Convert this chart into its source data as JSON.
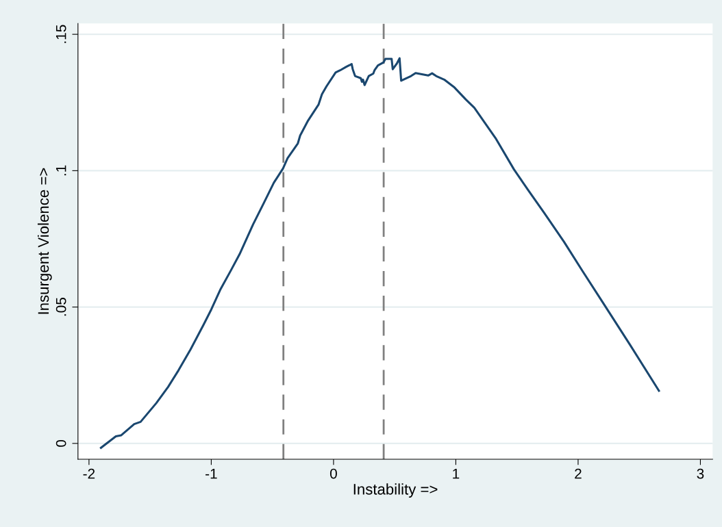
{
  "chart_data": {
    "type": "line",
    "xlabel": "Instability =>",
    "ylabel": "Insurgent Violence =>",
    "xlim": [
      -2.09,
      3.1
    ],
    "ylim": [
      -0.0058,
      0.154
    ],
    "xticks": [
      -2,
      -1,
      0,
      1,
      2,
      3
    ],
    "yticks": [
      0,
      {
        "value": 0.05,
        "label": ".05"
      },
      {
        "value": 0.1,
        "label": ".1"
      },
      {
        "value": 0.15,
        "label": ".15"
      }
    ],
    "grid": "y",
    "marker": "none",
    "line_style": "solid",
    "series": [
      {
        "color": "#1a476f",
        "x": [
          -1.902,
          -1.78,
          -1.736,
          -1.63,
          -1.578,
          -1.449,
          -1.353,
          -1.268,
          -1.17,
          -1.061,
          -1.0,
          -0.927,
          -0.841,
          -0.768,
          -0.658,
          -0.573,
          -0.488,
          -0.413,
          -0.376,
          -0.292,
          -0.273,
          -0.208,
          -0.123,
          -0.095,
          -0.058,
          0.017,
          0.054,
          0.101,
          0.148,
          0.157,
          0.176,
          0.223,
          0.232,
          0.241,
          0.254,
          0.288,
          0.325,
          0.335,
          0.363,
          0.409,
          0.424,
          0.475,
          0.484,
          0.518,
          0.54,
          0.553,
          0.634,
          0.671,
          0.774,
          0.806,
          0.839,
          0.905,
          0.989,
          1.082,
          1.151,
          1.324,
          1.475,
          1.594,
          1.723,
          1.885,
          2.036,
          2.209,
          2.424,
          2.661
        ],
        "values": [
          -0.0016,
          0.0026,
          0.003,
          0.0071,
          0.0079,
          0.0148,
          0.0207,
          0.0268,
          0.0344,
          0.0437,
          0.0491,
          0.0563,
          0.0633,
          0.0694,
          0.0803,
          0.0879,
          0.0956,
          0.1008,
          0.1046,
          0.11,
          0.1129,
          0.1184,
          0.1242,
          0.128,
          0.1309,
          0.136,
          0.1368,
          0.138,
          0.1391,
          0.1372,
          0.1347,
          0.1339,
          0.1326,
          0.1334,
          0.1314,
          0.1347,
          0.1356,
          0.1368,
          0.1386,
          0.1397,
          0.141,
          0.141,
          0.1372,
          0.1393,
          0.1412,
          0.133,
          0.1347,
          0.1358,
          0.1349,
          0.1357,
          0.1347,
          0.1334,
          0.1305,
          0.1261,
          0.1231,
          0.112,
          0.1005,
          0.0927,
          0.0845,
          0.0739,
          0.0632,
          0.0512,
          0.0362,
          0.0193
        ]
      }
    ],
    "ref_lines": [
      {
        "axis": "x",
        "value": -0.41,
        "color": "#808080",
        "line_style": "dashed"
      },
      {
        "axis": "x",
        "value": 0.41,
        "color": "#808080",
        "line_style": "dashed"
      }
    ]
  }
}
